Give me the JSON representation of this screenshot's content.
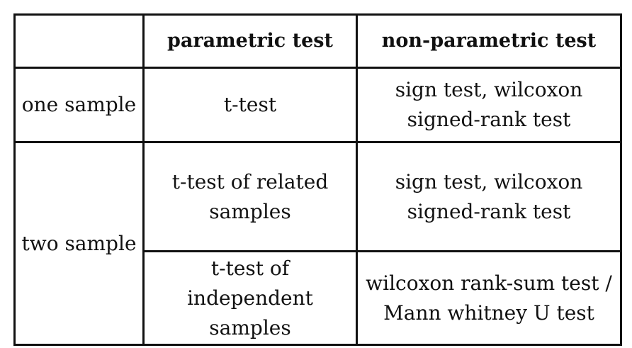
{
  "header": {
    "corner": "",
    "parametric": "parametric test",
    "nonparametric": "non-parametric test"
  },
  "rows": {
    "one_sample": {
      "label": "one sample",
      "parametric": [
        "t-test"
      ],
      "nonparametric": [
        "sign test, wilcoxon",
        "signed-rank test"
      ]
    },
    "two_sample": {
      "label": "two sample",
      "related": {
        "parametric": [
          "t-test of related",
          "samples"
        ],
        "nonparametric": [
          "sign test, wilcoxon",
          "signed-rank test"
        ]
      },
      "independent": {
        "parametric": [
          "t-test of",
          "independent",
          "samples"
        ],
        "nonparametric": [
          "wilcoxon rank-sum test  /",
          "Mann whitney U test"
        ]
      }
    }
  }
}
